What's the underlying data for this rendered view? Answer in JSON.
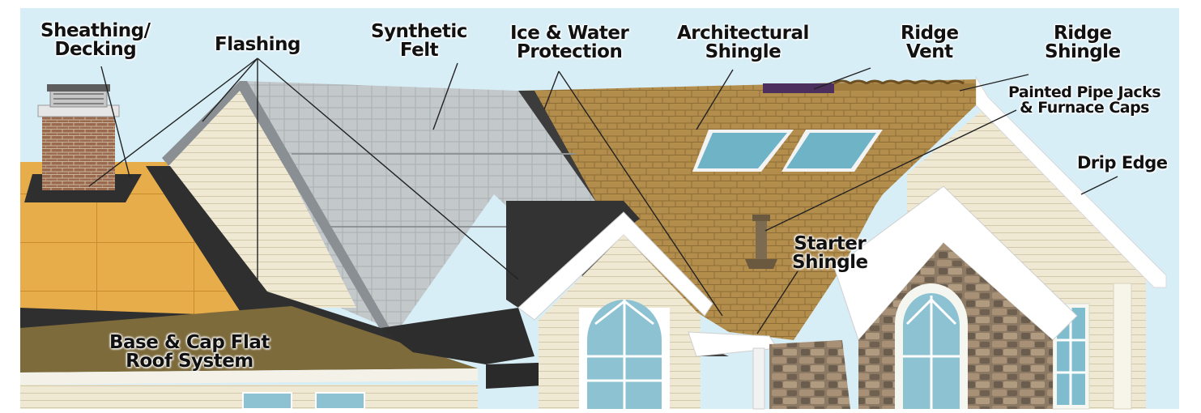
{
  "labels": {
    "sheathing": "Sheathing/\nDecking",
    "flashing": "Flashing",
    "synthetic_felt": "Synthetic\nFelt",
    "ice_water": "Ice & Water\nProtection",
    "architectural": "Architectural\nShingle",
    "ridge_vent": "Ridge\nVent",
    "ridge_shingle": "Ridge\nShingle",
    "pipe_jacks": "Painted Pipe Jacks\n& Furnace Caps",
    "drip_edge": "Drip Edge",
    "starter": "Starter\nShingle",
    "flat_roof": "Base & Cap Flat\nRoof System"
  },
  "colors": {
    "sky": "#d8eef7",
    "decking": "#e8b04c",
    "felt": "#b9bec1",
    "ice_water": "#3a3a3a",
    "shingle": "#b08a4a",
    "flat_roof": "#7e6b3c",
    "siding": "#efe8d2",
    "stone": "#8a7660",
    "glass": "#6fb3c7"
  }
}
